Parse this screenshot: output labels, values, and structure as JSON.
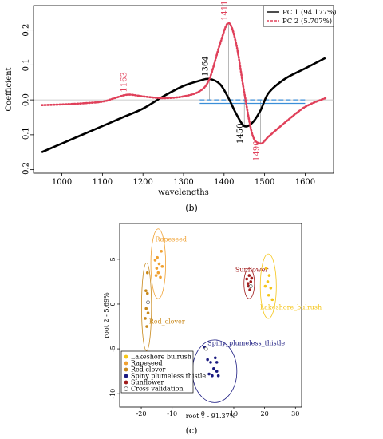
{
  "chart_data": [
    {
      "type": "line",
      "panel_label": "(b)",
      "xlabel": "wavelengths",
      "ylabel": "Coefficient",
      "xlim": [
        930,
        1670
      ],
      "ylim": [
        -0.21,
        0.27
      ],
      "x_ticks": [
        1000,
        1100,
        1200,
        1300,
        1400,
        1500,
        1600
      ],
      "y_ticks": [
        -0.2,
        -0.1,
        0.0,
        0.1,
        0.2
      ],
      "x_tick_labels": [
        "1000",
        "1100",
        "1200",
        "1300",
        "1400",
        "1500",
        "1600"
      ],
      "y_tick_labels": [
        "-0.2",
        "-0.1",
        "0.0",
        "0.1",
        "0.2"
      ],
      "legend_placement": "top-right",
      "series": [
        {
          "name": "PC 1 (94.177%)",
          "color": "#000000",
          "style": "solid",
          "x": [
            950,
            1000,
            1050,
            1100,
            1150,
            1200,
            1250,
            1300,
            1340,
            1364,
            1390,
            1411,
            1430,
            1450,
            1470,
            1490,
            1510,
            1550,
            1600,
            1650
          ],
          "y": [
            -0.15,
            -0.125,
            -0.1,
            -0.075,
            -0.05,
            -0.025,
            0.01,
            0.04,
            0.055,
            0.06,
            0.045,
            0.005,
            -0.04,
            -0.075,
            -0.065,
            -0.03,
            0.02,
            0.06,
            0.09,
            0.12
          ]
        },
        {
          "name": "PC 2 (5.707%)",
          "color": "#e0405a",
          "style": "dotted",
          "x": [
            950,
            1000,
            1050,
            1100,
            1130,
            1163,
            1200,
            1250,
            1300,
            1340,
            1364,
            1390,
            1411,
            1430,
            1450,
            1470,
            1490,
            1510,
            1550,
            1600,
            1650
          ],
          "y": [
            -0.015,
            -0.013,
            -0.01,
            -0.005,
            0.005,
            0.015,
            0.01,
            0.005,
            0.01,
            0.025,
            0.06,
            0.16,
            0.22,
            0.16,
            0.02,
            -0.1,
            -0.125,
            -0.105,
            -0.065,
            -0.02,
            0.005
          ]
        }
      ],
      "annotations": [
        {
          "label": "1163",
          "x": 1163,
          "color": "#e0405a"
        },
        {
          "label": "1364",
          "x": 1364,
          "color": "#000000"
        },
        {
          "label": "1411",
          "x": 1411,
          "color": "#e0405a"
        },
        {
          "label": "1450",
          "x": 1450,
          "color": "#000000"
        },
        {
          "label": "1490",
          "x": 1490,
          "color": "#e0405a"
        }
      ]
    },
    {
      "type": "scatter",
      "panel_label": "(c)",
      "xlabel": "root 1 - 91.37%",
      "ylabel": "root 2 - 5.69%",
      "xlim": [
        -27,
        32
      ],
      "ylim": [
        -11.5,
        9
      ],
      "x_ticks": [
        -20,
        -10,
        0,
        10,
        20,
        30
      ],
      "y_ticks": [
        -10,
        -5,
        0,
        5
      ],
      "x_tick_labels": [
        "-20",
        "-10",
        "0",
        "10",
        "20",
        "30"
      ],
      "y_tick_labels": [
        "-10",
        "-5",
        "0",
        "5"
      ],
      "legend_placement": "bottom-left",
      "legend_items": [
        {
          "name": "Lakeshore bulrush",
          "color": "#f5c518",
          "hollow": false
        },
        {
          "name": "Rapeseed",
          "color": "#f0a030",
          "hollow": false
        },
        {
          "name": "Red clover",
          "color": "#c8881a",
          "hollow": false
        },
        {
          "name": "Spiny plumeless thistle",
          "color": "#1a1a80",
          "hollow": false
        },
        {
          "name": "Sunflower",
          "color": "#a01a1a",
          "hollow": false
        },
        {
          "name": "Cross validation",
          "color": "#555555",
          "hollow": true
        }
      ],
      "groups": [
        {
          "label": "Rapeseed",
          "color": "#f0a030",
          "ellipse": {
            "cx": -14.5,
            "cy": 4.5,
            "rx": 2.4,
            "ry": 3.9
          },
          "points": [
            [
              -13.5,
              5.9
            ],
            [
              -14.8,
              5.2
            ],
            [
              -15.5,
              4.9
            ],
            [
              -14.2,
              4.5
            ],
            [
              -13.2,
              4.2
            ],
            [
              -15.0,
              4.0
            ],
            [
              -14.5,
              3.5
            ],
            [
              -13.8,
              3.0
            ],
            [
              -15.2,
              3.2
            ]
          ]
        },
        {
          "label": "Red_clover",
          "color": "#c8881a",
          "ellipse": {
            "cx": -18.3,
            "cy": -0.3,
            "rx": 1.6,
            "ry": 4.9
          },
          "points": [
            [
              -18.0,
              3.5
            ],
            [
              -18.5,
              1.5
            ],
            [
              -18.0,
              1.2
            ],
            [
              -18.4,
              -0.5
            ],
            [
              -17.8,
              -1.0
            ],
            [
              -18.7,
              -1.6
            ],
            [
              -18.2,
              -2.5
            ]
          ]
        },
        {
          "label": "Sunflower",
          "color": "#a01a1a",
          "ellipse": {
            "cx": 15.0,
            "cy": 2.3,
            "rx": 1.7,
            "ry": 1.7
          },
          "points": [
            [
              14.2,
              2.8
            ],
            [
              15.0,
              3.2
            ],
            [
              15.5,
              2.5
            ],
            [
              14.8,
              2.0
            ],
            [
              15.2,
              1.6
            ],
            [
              14.6,
              2.3
            ],
            [
              15.8,
              2.9
            ]
          ]
        },
        {
          "label": "Lakeshore_bulrush",
          "color": "#f5c518",
          "ellipse": {
            "cx": 21.2,
            "cy": 2.0,
            "rx": 2.6,
            "ry": 3.6
          },
          "points": [
            [
              20.5,
              4.0
            ],
            [
              21.5,
              3.2
            ],
            [
              21.0,
              2.5
            ],
            [
              20.2,
              2.0
            ],
            [
              22.0,
              1.8
            ],
            [
              21.3,
              1.0
            ],
            [
              22.5,
              0.5
            ]
          ]
        },
        {
          "label": "Spiny_plumeless_thistle",
          "color": "#1a1a80",
          "ellipse": {
            "cx": 3.8,
            "cy": -7.5,
            "rx": 7.2,
            "ry": 3.5
          },
          "points": [
            [
              0.5,
              -4.8
            ],
            [
              1.5,
              -6.2
            ],
            [
              2.5,
              -6.5
            ],
            [
              4.0,
              -6.0
            ],
            [
              4.5,
              -6.5
            ],
            [
              3.5,
              -7.2
            ],
            [
              4.5,
              -7.5
            ],
            [
              2.0,
              -7.8
            ],
            [
              3.0,
              -8.0
            ],
            [
              5.0,
              -8.0
            ]
          ]
        }
      ],
      "cross_validation_points": [
        [
          -17.8,
          0.2
        ],
        [
          1.0,
          -5.0
        ],
        [
          15.5,
          2.0
        ]
      ]
    }
  ]
}
